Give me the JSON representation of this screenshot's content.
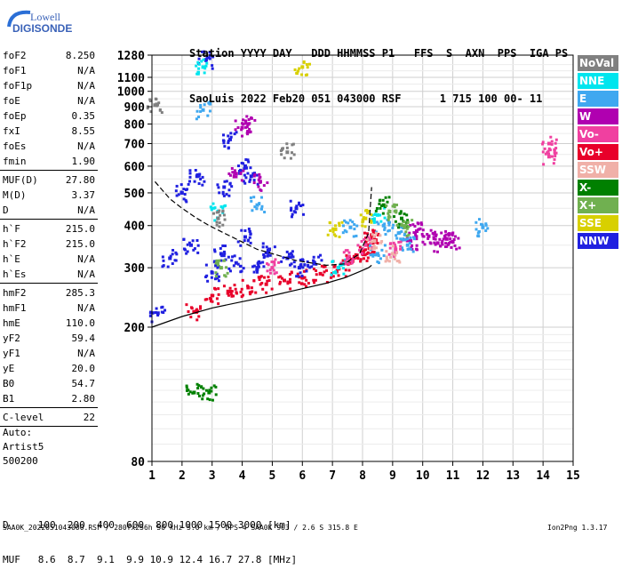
{
  "logo": {
    "line1": "Lowell",
    "line2": "DIGISONDE"
  },
  "header": {
    "line1": "Station YYYY DAY   DDD HHMMSS P1   FFS  S  AXN  PPS  IGA PS",
    "line2": "SaoLuis 2022 Feb20 051 043000 RSF      1 715 100 00- 11"
  },
  "params": [
    {
      "k": "foF2",
      "v": "8.250"
    },
    {
      "k": "foF1",
      "v": "N/A"
    },
    {
      "k": "foF1p",
      "v": "N/A"
    },
    {
      "k": "foE",
      "v": "N/A"
    },
    {
      "k": "foEp",
      "v": "0.35"
    },
    {
      "k": "fxI",
      "v": "8.55"
    },
    {
      "k": "foEs",
      "v": "N/A"
    },
    {
      "k": "fmin",
      "v": "1.90"
    },
    {
      "sep": true
    },
    {
      "k": "MUF(D)",
      "v": "27.80"
    },
    {
      "k": "M(D)",
      "v": "3.37"
    },
    {
      "k": "D",
      "v": "N/A"
    },
    {
      "sep": true
    },
    {
      "k": "h`F",
      "v": "215.0"
    },
    {
      "k": "h`F2",
      "v": "215.0"
    },
    {
      "k": "h`E",
      "v": "N/A"
    },
    {
      "k": "h`Es",
      "v": "N/A"
    },
    {
      "sep": true
    },
    {
      "k": "hmF2",
      "v": "285.3"
    },
    {
      "k": "hmF1",
      "v": "N/A"
    },
    {
      "k": "hmE",
      "v": "110.0"
    },
    {
      "k": "yF2",
      "v": "59.4"
    },
    {
      "k": "yF1",
      "v": "N/A"
    },
    {
      "k": "yE",
      "v": "20.0"
    },
    {
      "k": "B0",
      "v": "54.7"
    },
    {
      "k": "B1",
      "v": "2.80"
    },
    {
      "sep": true
    },
    {
      "k": "C-level",
      "v": "22"
    },
    {
      "sep": true
    }
  ],
  "auto": {
    "line1": "Auto:",
    "line2": "Artist5",
    "line3": "500200"
  },
  "legend": [
    {
      "label": "NoVal",
      "color": "#808080"
    },
    {
      "label": "NNE",
      "color": "#00e5ee"
    },
    {
      "label": "E",
      "color": "#3fa8f0"
    },
    {
      "label": "W",
      "color": "#b000b0"
    },
    {
      "label": "Vo-",
      "color": "#f040a0"
    },
    {
      "label": "Vo+",
      "color": "#e8002a"
    },
    {
      "label": "SSW",
      "color": "#f0b0a8"
    },
    {
      "label": "X-",
      "color": "#008000"
    },
    {
      "label": "X+",
      "color": "#70b050"
    },
    {
      "label": "SSE",
      "color": "#d8d000"
    },
    {
      "label": "NNW",
      "color": "#2020e0"
    }
  ],
  "footer": {
    "line1": "D     100  200  400  600  800 1000 1500 3000 [km]",
    "line2": "MUF   8.6  8.7  9.1  9.9 10.9 12.4 16.7 27.8 [MHz]",
    "file": "SAA0K_2022051043000.RSF / 280fx256h 50 kHz 5.0 km / DPS-4 SAA0K 903 / 2.6 S 315.8 E",
    "version": "Ion2Png 1.3.17"
  },
  "chart_data": {
    "type": "scatter",
    "title": "",
    "xlabel": "",
    "ylabel": "",
    "x_ticks": [
      1,
      2,
      3,
      4,
      5,
      6,
      7,
      8,
      9,
      10,
      11,
      12,
      13,
      14,
      15
    ],
    "y_ticks": [
      80,
      200,
      300,
      400,
      500,
      600,
      700,
      800,
      900,
      1000,
      1100,
      1280
    ],
    "xlim": [
      1,
      15
    ],
    "ylim": [
      80,
      1280
    ],
    "grid": true,
    "y_scale": "log",
    "series": [
      {
        "name": "Vo+",
        "color": "#e8002a",
        "points": [
          [
            2.4,
            222
          ],
          [
            3.0,
            248
          ],
          [
            3.6,
            255
          ],
          [
            4.2,
            262
          ],
          [
            4.8,
            268
          ],
          [
            5.4,
            275
          ],
          [
            6.0,
            280
          ],
          [
            6.6,
            288
          ],
          [
            7.2,
            298
          ],
          [
            7.6,
            310
          ],
          [
            8.0,
            330
          ],
          [
            8.2,
            350
          ],
          [
            8.3,
            375
          ]
        ]
      },
      {
        "name": "NNW",
        "color": "#2020e0",
        "points": [
          [
            3.0,
            290
          ],
          [
            3.3,
            330
          ],
          [
            3.8,
            310
          ],
          [
            4.1,
            370
          ],
          [
            4.5,
            300
          ],
          [
            4.9,
            340
          ],
          [
            5.5,
            320
          ],
          [
            5.9,
            300
          ],
          [
            6.4,
            310
          ],
          [
            2.3,
            350
          ],
          [
            2.0,
            500
          ],
          [
            3.4,
            520
          ],
          [
            4.1,
            600
          ],
          [
            2.8,
            1240
          ],
          [
            3.6,
            720
          ],
          [
            4.3,
            560
          ],
          [
            5.8,
            450
          ],
          [
            1.2,
            220
          ],
          [
            1.6,
            320
          ],
          [
            2.5,
            560
          ]
        ]
      },
      {
        "name": "W",
        "color": "#b000b0",
        "points": [
          [
            9.6,
            360
          ],
          [
            10.2,
            372
          ],
          [
            10.8,
            365
          ],
          [
            11.0,
            358
          ],
          [
            10.5,
            355
          ],
          [
            4.2,
            800
          ],
          [
            4.0,
            780
          ],
          [
            3.8,
            570
          ],
          [
            4.6,
            540
          ],
          [
            9.8,
            385
          ]
        ]
      },
      {
        "name": "E",
        "color": "#3fa8f0",
        "points": [
          [
            8.7,
            400
          ],
          [
            9.2,
            380
          ],
          [
            9.5,
            350
          ],
          [
            8.5,
            330
          ],
          [
            7.6,
            395
          ],
          [
            4.5,
            460
          ],
          [
            2.7,
            880
          ],
          [
            12.0,
            395
          ]
        ]
      },
      {
        "name": "NNE",
        "color": "#00e5ee",
        "points": [
          [
            2.7,
            1180
          ],
          [
            7.2,
            300
          ],
          [
            8.5,
            430
          ],
          [
            3.2,
            440
          ]
        ]
      },
      {
        "name": "Vo-",
        "color": "#f040a0",
        "points": [
          [
            8.1,
            350
          ],
          [
            7.5,
            320
          ],
          [
            5.0,
            300
          ],
          [
            9.1,
            340
          ],
          [
            14.2,
            640
          ],
          [
            14.2,
            700
          ]
        ]
      },
      {
        "name": "X-",
        "color": "#008000",
        "points": [
          [
            2.4,
            128
          ],
          [
            2.9,
            128
          ],
          [
            9.3,
            420
          ],
          [
            8.7,
            460
          ]
        ]
      },
      {
        "name": "X+",
        "color": "#70b050",
        "points": [
          [
            8.9,
            440
          ],
          [
            9.4,
            395
          ],
          [
            3.3,
            300
          ]
        ]
      },
      {
        "name": "SSE",
        "color": "#d8d000",
        "points": [
          [
            7.1,
            390
          ],
          [
            8.1,
            420
          ],
          [
            6.0,
            1180
          ]
        ]
      },
      {
        "name": "SSW",
        "color": "#f0b0a8",
        "points": [
          [
            8.4,
            360
          ],
          [
            9.0,
            330
          ]
        ]
      },
      {
        "name": "NoVal",
        "color": "#808080",
        "points": [
          [
            1.1,
            910
          ],
          [
            3.2,
            420
          ],
          [
            5.5,
            660
          ]
        ]
      }
    ],
    "trace_lower": {
      "x": [
        1.0,
        2.0,
        3.0,
        4.0,
        5.0,
        6.0,
        6.8,
        7.4,
        7.9,
        8.2,
        8.3
      ],
      "y": [
        200,
        215,
        228,
        238,
        248,
        260,
        270,
        280,
        292,
        300,
        305
      ]
    },
    "trace_profile": {
      "x": [
        1.1,
        1.6,
        2.0,
        2.5,
        2.9,
        3.4,
        4.5,
        5.8,
        6.8,
        7.4,
        7.9,
        8.2,
        8.3
      ],
      "y": [
        540,
        480,
        450,
        420,
        400,
        380,
        340,
        315,
        305,
        308,
        330,
        380,
        520
      ]
    }
  }
}
